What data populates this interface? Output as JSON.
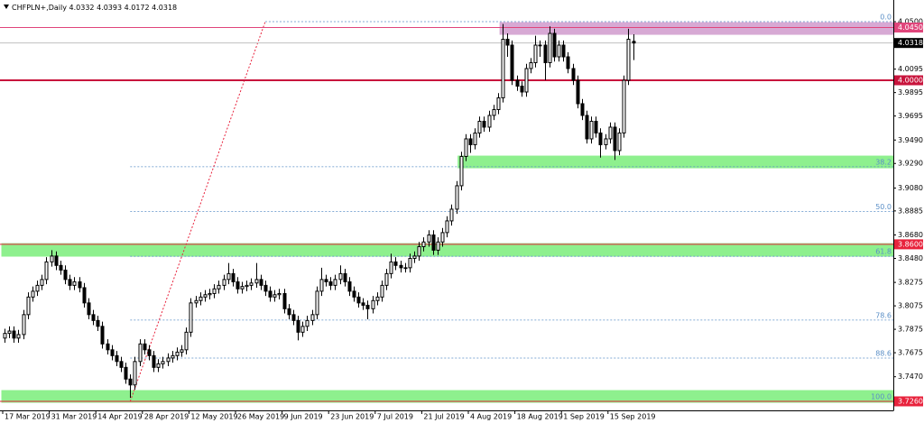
{
  "chart_data": {
    "type": "candlestick",
    "title": "CHFPLN+,Daily",
    "categories": [
      "17 Mar 2019",
      null,
      null,
      null,
      null,
      null,
      null,
      null,
      null,
      null,
      "31 Mar 2019",
      null,
      null,
      null,
      null,
      null,
      null,
      null,
      null,
      null,
      "14 Apr 2019",
      null,
      null,
      null,
      null,
      null,
      null,
      null,
      null,
      null,
      "28 Apr 2019",
      null,
      null,
      null,
      null,
      null,
      null,
      null,
      null,
      null,
      "12 May 2019",
      null,
      null,
      null,
      null,
      null,
      null,
      null,
      null,
      null,
      "26 May 2019",
      null,
      null,
      null,
      null,
      null,
      null,
      null,
      null,
      null,
      "9 Jun 2019",
      null,
      null,
      null,
      null,
      null,
      null,
      null,
      null,
      null,
      "23 Jun 2019",
      null,
      null,
      null,
      null,
      null,
      null,
      null,
      null,
      null,
      "7 Jul 2019",
      null,
      null,
      null,
      null,
      null,
      null,
      null,
      null,
      null,
      "21 Jul 2019",
      null,
      null,
      null,
      null,
      null,
      null,
      null,
      null,
      null,
      "4 Aug 2019",
      null,
      null,
      null,
      null,
      null,
      null,
      null,
      null,
      null,
      "18 Aug 2019",
      null,
      null,
      null,
      null,
      null,
      null,
      null,
      null,
      null,
      "1 Sep 2019",
      null,
      null,
      null,
      null,
      null,
      null,
      null,
      null,
      null,
      "15 Sep 2019",
      null,
      null,
      null,
      null,
      null
    ],
    "open": [
      3.78,
      3.784,
      3.786,
      3.78,
      3.783,
      3.8,
      3.815,
      3.82,
      3.825,
      3.83,
      3.845,
      3.85,
      3.842,
      3.838,
      3.83,
      3.825,
      3.828,
      3.823,
      3.81,
      3.8,
      3.795,
      3.79,
      3.775,
      3.77,
      3.765,
      3.76,
      3.755,
      3.745,
      3.74,
      3.76,
      3.775,
      3.77,
      3.765,
      3.755,
      3.758,
      3.76,
      3.763,
      3.765,
      3.768,
      3.77,
      3.785,
      3.81,
      3.812,
      3.815,
      3.817,
      3.818,
      3.822,
      3.825,
      3.83,
      3.835,
      3.828,
      3.822,
      3.824,
      3.825,
      3.827,
      3.83,
      3.825,
      3.82,
      3.815,
      3.817,
      3.818,
      3.805,
      3.8,
      3.795,
      3.785,
      3.79,
      3.795,
      3.8,
      3.82,
      3.83,
      3.828,
      3.825,
      3.83,
      3.835,
      3.828,
      3.82,
      3.815,
      3.81,
      3.808,
      3.805,
      3.812,
      3.815,
      3.825,
      3.835,
      3.845,
      3.842,
      3.84,
      3.84,
      3.848,
      3.85,
      3.858,
      3.862,
      3.868,
      3.855,
      3.862,
      3.87,
      3.88,
      3.89,
      3.91,
      3.935,
      3.95,
      3.945,
      3.955,
      3.965,
      3.96,
      3.97,
      3.975,
      3.985,
      4.035,
      4.03,
      4.0,
      3.995,
      3.99,
      4.01,
      4.015,
      4.03,
      4.03,
      4.015,
      4.04,
      4.02,
      4.03,
      4.02,
      4.01,
      4.0,
      3.98,
      3.97,
      3.95,
      3.965,
      3.955,
      3.945,
      3.95,
      3.96,
      3.94,
      3.955,
      4.0,
      4.0332
    ],
    "high": [
      3.788,
      3.79,
      3.79,
      3.787,
      3.804,
      3.819,
      3.824,
      3.829,
      3.834,
      3.849,
      3.855,
      3.854,
      3.846,
      3.842,
      3.834,
      3.832,
      3.832,
      3.827,
      3.814,
      3.804,
      3.799,
      3.794,
      3.779,
      3.774,
      3.769,
      3.764,
      3.759,
      3.749,
      3.764,
      3.779,
      3.779,
      3.774,
      3.769,
      3.762,
      3.764,
      3.767,
      3.769,
      3.772,
      3.774,
      3.789,
      3.814,
      3.816,
      3.819,
      3.821,
      3.822,
      3.826,
      3.829,
      3.834,
      3.844,
      3.839,
      3.832,
      3.828,
      3.829,
      3.831,
      3.844,
      3.834,
      3.829,
      3.824,
      3.821,
      3.822,
      3.822,
      3.809,
      3.804,
      3.799,
      3.794,
      3.799,
      3.804,
      3.824,
      3.84,
      3.834,
      3.832,
      3.834,
      3.842,
      3.839,
      3.832,
      3.824,
      3.819,
      3.814,
      3.812,
      3.816,
      3.819,
      3.829,
      3.839,
      3.852,
      3.849,
      3.846,
      3.844,
      3.852,
      3.854,
      3.862,
      3.866,
      3.872,
      3.872,
      3.866,
      3.874,
      3.884,
      3.894,
      3.914,
      3.939,
      3.954,
      3.954,
      3.959,
      3.969,
      3.969,
      3.974,
      3.979,
      3.989,
      4.048,
      4.04,
      4.034,
      4.004,
      3.999,
      4.014,
      4.019,
      4.038,
      4.034,
      4.034,
      4.046,
      4.044,
      4.034,
      4.034,
      4.024,
      4.014,
      4.004,
      3.984,
      3.974,
      3.969,
      3.969,
      3.959,
      3.954,
      3.964,
      3.964,
      3.959,
      4.004,
      4.044,
      4.0393
    ],
    "low": [
      3.776,
      3.78,
      3.776,
      3.776,
      3.779,
      3.796,
      3.811,
      3.816,
      3.821,
      3.826,
      3.841,
      3.838,
      3.834,
      3.826,
      3.821,
      3.821,
      3.819,
      3.806,
      3.796,
      3.791,
      3.786,
      3.771,
      3.766,
      3.761,
      3.756,
      3.751,
      3.741,
      3.729,
      3.736,
      3.756,
      3.766,
      3.761,
      3.751,
      3.751,
      3.754,
      3.756,
      3.759,
      3.761,
      3.764,
      3.766,
      3.781,
      3.806,
      3.808,
      3.811,
      3.813,
      3.814,
      3.818,
      3.821,
      3.826,
      3.824,
      3.818,
      3.818,
      3.82,
      3.821,
      3.823,
      3.821,
      3.816,
      3.811,
      3.811,
      3.813,
      3.801,
      3.796,
      3.791,
      3.778,
      3.781,
      3.786,
      3.791,
      3.796,
      3.816,
      3.824,
      3.821,
      3.821,
      3.826,
      3.824,
      3.816,
      3.811,
      3.806,
      3.804,
      3.796,
      3.801,
      3.808,
      3.811,
      3.821,
      3.831,
      3.838,
      3.836,
      3.836,
      3.836,
      3.844,
      3.846,
      3.854,
      3.858,
      3.851,
      3.851,
      3.858,
      3.866,
      3.876,
      3.886,
      3.906,
      3.931,
      3.938,
      3.941,
      3.951,
      3.956,
      3.956,
      3.966,
      3.971,
      3.981,
      4.02,
      3.996,
      3.991,
      3.986,
      3.986,
      4.006,
      4.011,
      4.02,
      4.0,
      4.011,
      4.016,
      4.016,
      4.016,
      4.006,
      3.996,
      3.976,
      3.966,
      3.946,
      3.946,
      3.951,
      3.934,
      3.941,
      3.946,
      3.932,
      3.936,
      3.951,
      3.996,
      4.0172
    ],
    "close": [
      3.784,
      3.786,
      3.78,
      3.783,
      3.8,
      3.815,
      3.82,
      3.825,
      3.83,
      3.845,
      3.85,
      3.842,
      3.838,
      3.83,
      3.825,
      3.828,
      3.823,
      3.81,
      3.8,
      3.795,
      3.79,
      3.775,
      3.77,
      3.765,
      3.76,
      3.755,
      3.745,
      3.74,
      3.76,
      3.775,
      3.77,
      3.765,
      3.755,
      3.758,
      3.76,
      3.763,
      3.765,
      3.768,
      3.77,
      3.785,
      3.81,
      3.812,
      3.815,
      3.817,
      3.818,
      3.822,
      3.825,
      3.83,
      3.835,
      3.828,
      3.822,
      3.824,
      3.825,
      3.827,
      3.83,
      3.825,
      3.82,
      3.815,
      3.817,
      3.818,
      3.805,
      3.8,
      3.795,
      3.785,
      3.79,
      3.795,
      3.8,
      3.82,
      3.83,
      3.828,
      3.825,
      3.83,
      3.835,
      3.828,
      3.82,
      3.815,
      3.81,
      3.808,
      3.805,
      3.812,
      3.815,
      3.825,
      3.835,
      3.845,
      3.842,
      3.84,
      3.84,
      3.848,
      3.85,
      3.858,
      3.862,
      3.868,
      3.855,
      3.862,
      3.87,
      3.88,
      3.89,
      3.91,
      3.935,
      3.95,
      3.945,
      3.955,
      3.965,
      3.96,
      3.97,
      3.975,
      3.985,
      4.035,
      4.03,
      4.0,
      3.995,
      3.99,
      4.01,
      4.015,
      4.03,
      4.03,
      4.015,
      4.04,
      4.02,
      4.03,
      4.02,
      4.01,
      4.0,
      3.98,
      3.97,
      3.95,
      3.965,
      3.955,
      3.945,
      3.95,
      3.96,
      3.94,
      3.955,
      4.0,
      4.035,
      4.0318
    ],
    "ylim": [
      3.7183,
      4.0685
    ],
    "yticks": [
      {
        "value": 4.05,
        "label": "4.0500"
      },
      4.0095,
      3.9895,
      3.9695,
      {
        "value": 3.949,
        "label": "3.9490"
      },
      {
        "value": 3.929,
        "label": "3.9290"
      },
      {
        "value": 3.908,
        "label": "3.9080"
      },
      3.8885,
      {
        "value": 3.868,
        "label": "3.8680"
      },
      {
        "value": 3.848,
        "label": "3.8480"
      },
      3.8275,
      3.8075,
      3.7875,
      3.7675,
      {
        "value": 3.747,
        "label": "3.7470"
      }
    ],
    "zones": [
      {
        "from": 4.0392,
        "to": 4.0492,
        "start_index": 107,
        "color": "#d7a9d4"
      },
      {
        "from": 3.9253,
        "to": 3.9353,
        "start_index": 98,
        "color": "#8ef08e"
      },
      {
        "from": 3.8499,
        "to": 3.8606,
        "start_index": 0,
        "color": "#8ef08e"
      },
      {
        "from": 3.7252,
        "to": 3.7352,
        "start_index": 0,
        "color": "#8ef08e"
      }
    ],
    "horizontal_lines": [
      {
        "value": 4.045,
        "label": "4.0450",
        "color": "#e0457b",
        "width": 1
      },
      {
        "value": 4.0,
        "label": "4.0000",
        "color": "#c8143c",
        "width": 2
      },
      {
        "value": 3.86,
        "label": "3.8600",
        "color": "#e8223c",
        "width": 1
      },
      {
        "value": 3.726,
        "label": "3.7260",
        "color": "#e8223c",
        "width": 1
      }
    ],
    "fibonacci": {
      "from": {
        "index": 27,
        "value": 3.726
      },
      "to": {
        "index": 56,
        "value": 4.05
      },
      "color": "#e8223c",
      "level_color": "#5b8fc7",
      "levels": [
        {
          "value": 0,
          "label": "0.0"
        },
        {
          "value": 38.2,
          "label": "38.2"
        },
        {
          "value": 50,
          "label": "50.0"
        },
        {
          "value": 61.8,
          "label": "61.8"
        },
        {
          "value": 78.6,
          "label": "78.6"
        },
        {
          "value": 88.6,
          "label": "88.6"
        },
        {
          "value": 100,
          "label": "100.0"
        }
      ]
    }
  }
}
